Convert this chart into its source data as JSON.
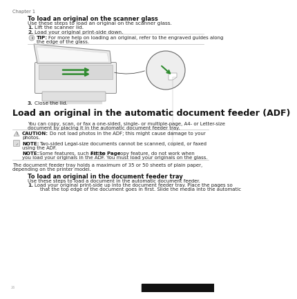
{
  "bg_color": "#ffffff",
  "chapter_label": "Chapter 1",
  "section1_title": "To load an original on the scanner glass",
  "section1_intro": "Use these steps to load an original on the scanner glass.",
  "step1": "Lift the scanner lid.",
  "step2": "Load your original print-side down.",
  "tip_line1": "For more help on loading an original, refer to the engraved guides along",
  "tip_line2": "the edge of the glass.",
  "step3": "Close the lid.",
  "section2_title": "Load an original in the automatic document feeder (ADF)",
  "section2_line1": "You can copy, scan, or fax a one-sided, single- or multiple-page, A4- or Letter-size",
  "section2_line2": "document by placing it in the automatic document feeder tray.",
  "caution_line1": "Do not load photos in the ADF; this might cause damage to your",
  "caution_line2": "photos.",
  "note1_line1": "Two-sided Legal-size documents cannot be scanned, copied, or faxed",
  "note1_line2": "using the ADF.",
  "note2_line1": "Some features, such as the ",
  "note2_bold": "Fit to Page",
  "note2_line1b": " copy feature, do not work when",
  "note2_line2": "you load your originals in the ADF. You must load your originals on the glass.",
  "doc_line1": "The document feeder tray holds a maximum of 35 or 50 sheets of plain paper,",
  "doc_line2": "depending on the printer model.",
  "section3_title": "To load an original in the document feeder tray",
  "section3_intro": "Use these steps to load a document in the automatic document feeder.",
  "step_final_1": "Load your original print-side up into the document feeder tray. Place the pages so",
  "step_final_2": "that the top edge of the document goes in first. Slide the media into the automatic"
}
